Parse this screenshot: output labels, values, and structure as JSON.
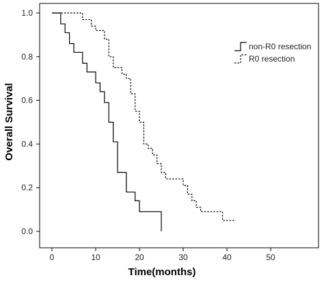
{
  "chart_data": {
    "type": "line",
    "subtype": "kaplan-meier step",
    "xlabel": "Time(months)",
    "ylabel": "Overall Survival",
    "xlim": [
      0,
      50
    ],
    "ylim": [
      0,
      1.0
    ],
    "xticks": [
      "0",
      "10",
      "20",
      "30",
      "40",
      "50"
    ],
    "yticks": [
      "0.0",
      "0.2",
      "0.4",
      "0.6",
      "0.8",
      "1.0"
    ],
    "grid": false,
    "legend_position": "top-right",
    "series": [
      {
        "name": "non-R0 resection",
        "line_style": "solid",
        "color": "#000000",
        "x": [
          0,
          2,
          3,
          4,
          5,
          7,
          8,
          10,
          11,
          12,
          13,
          14,
          15,
          17,
          19,
          20,
          21,
          25
        ],
        "y": [
          1.0,
          0.95,
          0.91,
          0.86,
          0.82,
          0.77,
          0.73,
          0.68,
          0.64,
          0.59,
          0.5,
          0.41,
          0.27,
          0.18,
          0.14,
          0.09,
          0.09,
          0.0
        ]
      },
      {
        "name": "R0 resection",
        "line_style": "dashed",
        "color": "#000000",
        "x": [
          0,
          7,
          9,
          10,
          12,
          13,
          14,
          16,
          17,
          18,
          19,
          20,
          21,
          22,
          23,
          24,
          25,
          26,
          30,
          31,
          32,
          33,
          34,
          35,
          39,
          42
        ],
        "y": [
          1.0,
          0.97,
          0.94,
          0.92,
          0.88,
          0.8,
          0.75,
          0.72,
          0.7,
          0.63,
          0.55,
          0.5,
          0.4,
          0.38,
          0.35,
          0.31,
          0.27,
          0.24,
          0.21,
          0.17,
          0.14,
          0.11,
          0.09,
          0.09,
          0.05,
          0.05
        ]
      }
    ]
  }
}
